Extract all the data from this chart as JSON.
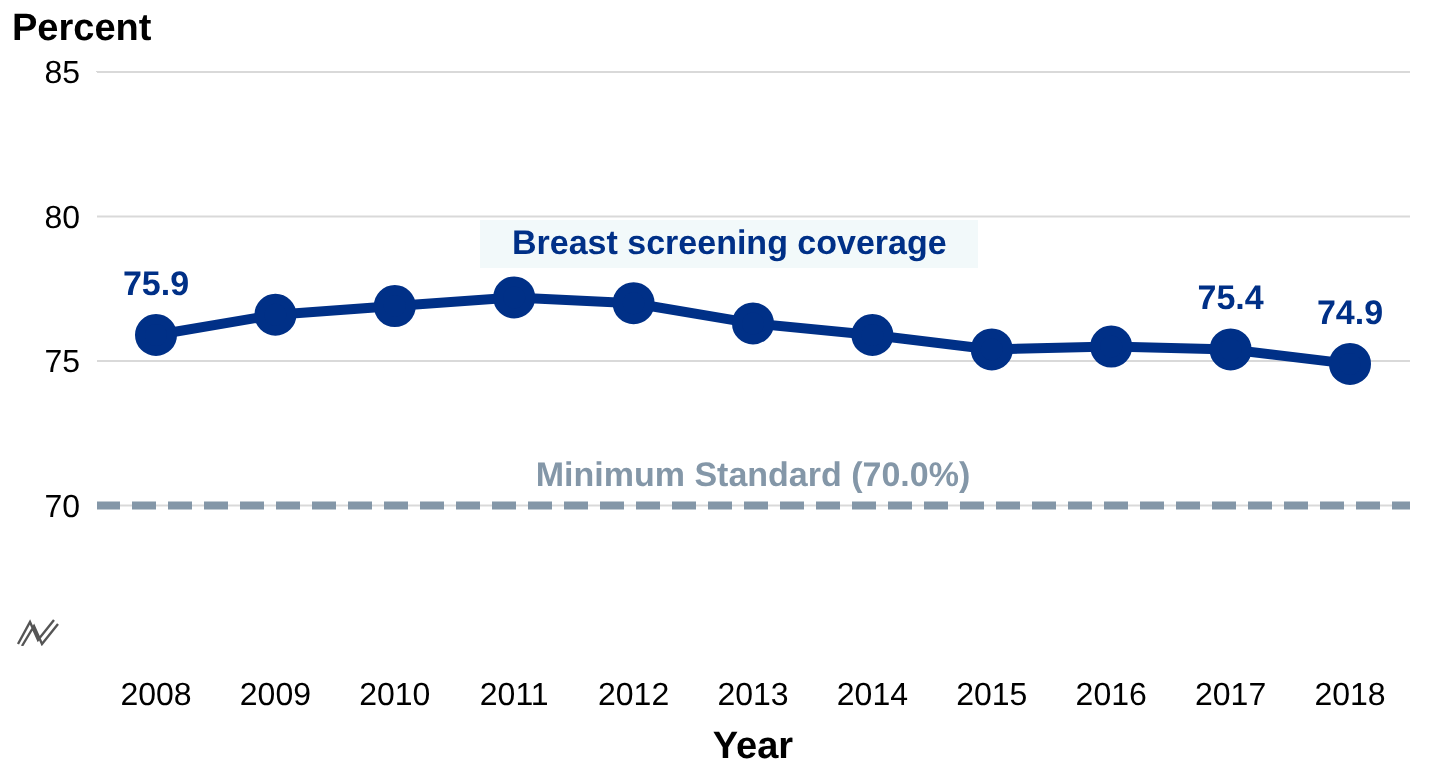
{
  "chart_data": {
    "type": "line",
    "xlabel": "Year",
    "ylabel": "Percent",
    "categories": [
      "2008",
      "2009",
      "2010",
      "2011",
      "2012",
      "2013",
      "2014",
      "2015",
      "2016",
      "2017",
      "2018"
    ],
    "series": [
      {
        "name": "Breast screening coverage",
        "color": "#003087",
        "values": [
          75.9,
          76.6,
          76.9,
          77.2,
          77.0,
          76.3,
          75.9,
          75.4,
          75.5,
          75.4,
          74.9
        ],
        "value_labels": [
          "75.9",
          null,
          null,
          null,
          null,
          null,
          null,
          null,
          null,
          "75.4",
          "74.9"
        ]
      }
    ],
    "ylim": [
      65,
      85
    ],
    "yticks": [
      70,
      75,
      80,
      85
    ],
    "grid": "y",
    "legend": false,
    "marker": "circle",
    "line_style": "solid",
    "ref_lines": [
      {
        "axis": "y",
        "value": 70,
        "label": "Minimum Standard (70.0%)",
        "color": "#8497a8",
        "line_style": "dashed"
      }
    ]
  }
}
